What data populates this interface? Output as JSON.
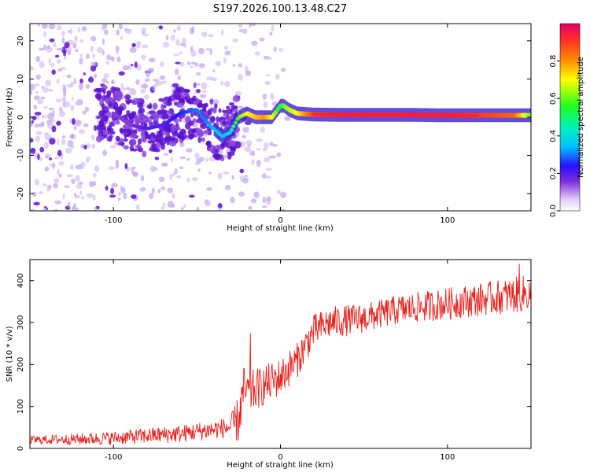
{
  "title": "S197.2026.100.13.48.C27",
  "colors": {
    "background": "#ffffff",
    "snr_line": "#e8201c",
    "residual_band": "#4a2bd6",
    "axes": "#000000"
  },
  "colorbar": {
    "label": "Normalized spectral amplitude",
    "range": [
      0,
      1
    ],
    "ticks": [
      "0.0",
      "0.2",
      "0.4",
      "0.6",
      "0.8"
    ],
    "tick_values": [
      0.0,
      0.2,
      0.4,
      0.6,
      0.8
    ]
  },
  "chart_data": [
    {
      "type": "heatmap",
      "name": "spectrogram",
      "xlabel": "Height of straight line (km)",
      "ylabel": "Frequency (Hz)",
      "xlim": [
        -150,
        150
      ],
      "ylim": [
        -24.5,
        24.5
      ],
      "xticks": [
        -100,
        0,
        100
      ],
      "xtick_labels": [
        "-100",
        "0",
        "100"
      ],
      "yticks": [
        20,
        10,
        0,
        -10,
        -20
      ],
      "ytick_labels": [
        "20",
        "10",
        "0",
        "-10",
        "-20"
      ],
      "frequency_trace": {
        "x": [
          -100,
          -90,
          -80,
          -70,
          -60,
          -50,
          -45,
          -40,
          -35,
          -30,
          -25,
          -20,
          -15,
          -10,
          -5,
          0,
          2,
          5,
          10,
          20,
          40,
          60,
          80,
          100,
          120,
          140,
          150
        ],
        "y": [
          1,
          -2,
          -3,
          -2,
          1,
          2,
          -1,
          -3,
          -5,
          -4,
          0,
          1,
          0,
          0,
          0,
          3,
          3,
          2,
          1,
          0.7,
          0.6,
          0.6,
          0.6,
          0.5,
          0.5,
          0.5,
          0.5
        ],
        "amplitude": [
          0.15,
          0.15,
          0.2,
          0.2,
          0.25,
          0.3,
          0.3,
          0.35,
          0.35,
          0.4,
          0.6,
          0.7,
          0.75,
          0.8,
          0.7,
          0.5,
          0.6,
          0.65,
          0.7,
          0.9,
          0.95,
          0.95,
          0.95,
          0.95,
          0.9,
          0.85,
          0.6
        ]
      },
      "noise_band_x": [
        -150,
        -20
      ],
      "noise_level": 0.08
    },
    {
      "type": "line",
      "name": "snr",
      "xlabel": "Height of straight line (km)",
      "ylabel": "SNR (10 * v/v)",
      "xlim": [
        -150,
        150
      ],
      "ylim": [
        0,
        450
      ],
      "xticks": [
        -100,
        0,
        100
      ],
      "xtick_labels": [
        "-100",
        "0",
        "100"
      ],
      "yticks": [
        0,
        100,
        200,
        300,
        400
      ],
      "ytick_labels": [
        "0",
        "100",
        "200",
        "300",
        "400"
      ],
      "trend": {
        "x": [
          -150,
          -120,
          -100,
          -80,
          -60,
          -40,
          -30,
          -25,
          -22,
          -20,
          -10,
          0,
          10,
          20,
          30,
          50,
          70,
          90,
          110,
          130,
          150
        ],
        "y": [
          20,
          22,
          25,
          30,
          35,
          45,
          50,
          70,
          140,
          130,
          150,
          170,
          210,
          280,
          300,
          310,
          330,
          340,
          350,
          360,
          370
        ]
      },
      "spread": {
        "x": [
          -150,
          -30,
          -25,
          -15,
          0,
          20,
          60,
          120,
          150
        ],
        "y": [
          10,
          25,
          60,
          50,
          45,
          40,
          35,
          40,
          45
        ]
      },
      "peaks": [
        {
          "x": -18,
          "y": 275
        },
        {
          "x": 143,
          "y": 440
        }
      ],
      "samples_per_km": 3
    }
  ]
}
